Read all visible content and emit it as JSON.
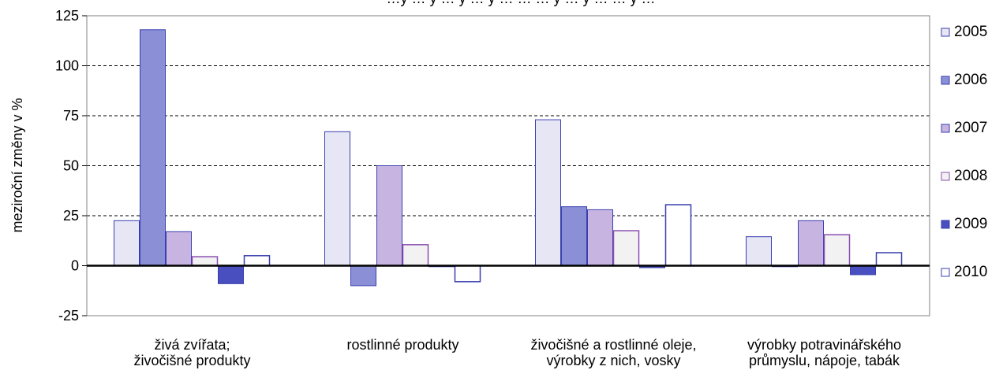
{
  "chart_data": {
    "type": "bar",
    "title_fragment": "…y … y … y … y … … … y … y … … y …",
    "ylabel": "meziroční změny v %",
    "ylim": [
      -25,
      125
    ],
    "yticks": [
      "-25",
      "0",
      "25",
      "50",
      "75",
      "100",
      "125"
    ],
    "grid": "horizontal dashed",
    "legend_position": "right",
    "categories": [
      [
        "živá  zvířata;",
        "živočišné  produkty"
      ],
      [
        "rostlinné  produkty"
      ],
      [
        "živočišné a rostlinné oleje,",
        "výrobky z nich,  vosky"
      ],
      [
        "výrobky potravinářského",
        "průmyslu, nápoje, tabák"
      ]
    ],
    "series": [
      {
        "name": "2005",
        "values": [
          22.5,
          67,
          73,
          14.5
        ],
        "color": "#e6e6f5"
      },
      {
        "name": "2006",
        "values": [
          118,
          -10,
          29.5,
          -0.5
        ],
        "color": "#8a8fd6"
      },
      {
        "name": "2007",
        "values": [
          17,
          50,
          28,
          22.5
        ],
        "color": "#c8b4e0"
      },
      {
        "name": "2008",
        "values": [
          4.5,
          10.5,
          17.5,
          15.5
        ],
        "color": "#f2f2f2",
        "stroke": "#8a4fb0"
      },
      {
        "name": "2009",
        "values": [
          -9,
          -0.5,
          -1,
          -4.5
        ],
        "color": "#4a4fc0"
      },
      {
        "name": "2010",
        "values": [
          5,
          -8,
          30.5,
          6.5
        ],
        "color": "#ffffff",
        "stroke": "#3a3fb0"
      }
    ]
  }
}
